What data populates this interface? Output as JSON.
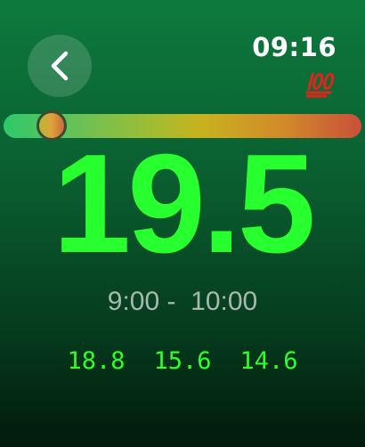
{
  "header": {
    "clock": "09:16",
    "back_icon": "chevron-left-icon",
    "status_icon": "hundred-points-icon"
  },
  "level_bar": {
    "position_fraction": 0.1,
    "colors": [
      "#2ec96a",
      "#a2bc32",
      "#c7b21e",
      "#c8503a"
    ]
  },
  "main": {
    "value": "19.5",
    "time_range": "9:00 -  10:00",
    "value_color": "#27ff2e"
  },
  "forecast": {
    "values": [
      "18.8",
      "15.6",
      "14.6"
    ]
  }
}
